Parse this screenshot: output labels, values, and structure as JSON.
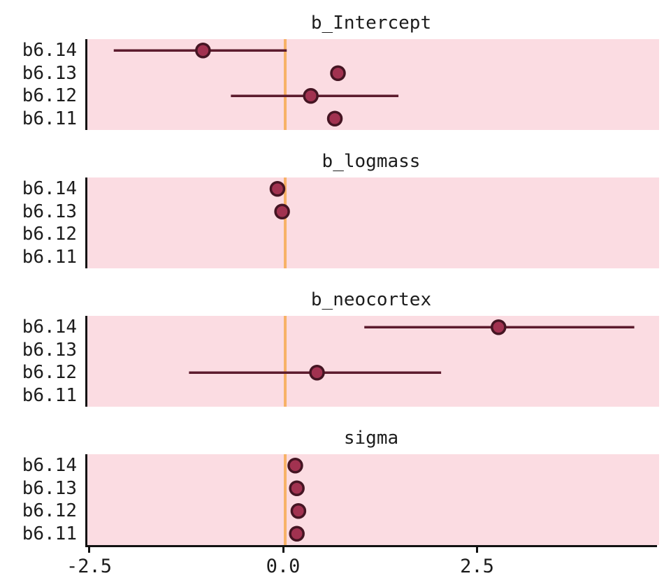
{
  "chart_data": {
    "type": "scatter",
    "subtype": "forest-interval-plot",
    "xlim": [
      -2.55,
      4.82
    ],
    "x_ticks": [
      -2.5,
      0.0,
      2.5
    ],
    "x_tick_labels": [
      "-2.5",
      "0.0",
      "2.5"
    ],
    "row_labels": [
      "b6.14",
      "b6.13",
      "b6.12",
      "b6.11"
    ],
    "zero_line": 0,
    "grid": false,
    "legend": "none",
    "colors": {
      "panel_bg": "#fbdce2",
      "zero_line": "#f7b267",
      "interval_line": "#5c1b2d",
      "point_fill": "#a13250",
      "point_stroke": "#451523",
      "axis": "#111111"
    },
    "panels": [
      {
        "title": "b_Intercept",
        "points": [
          {
            "row": "b6.14",
            "est": -1.06,
            "lo": -2.21,
            "hi": 0.02
          },
          {
            "row": "b6.13",
            "est": 0.68,
            "lo": 0.6,
            "hi": 0.76
          },
          {
            "row": "b6.12",
            "est": 0.33,
            "lo": -0.7,
            "hi": 1.46
          },
          {
            "row": "b6.11",
            "est": 0.64,
            "lo": 0.57,
            "hi": 0.71
          }
        ]
      },
      {
        "title": "b_logmass",
        "points": [
          {
            "row": "b6.14",
            "est": -0.1,
            "lo": -0.18,
            "hi": -0.02
          },
          {
            "row": "b6.13",
            "est": -0.04,
            "lo": -0.11,
            "hi": 0.04
          }
        ]
      },
      {
        "title": "b_neocortex",
        "points": [
          {
            "row": "b6.14",
            "est": 2.75,
            "lo": 1.02,
            "hi": 4.5
          },
          {
            "row": "b6.12",
            "est": 0.41,
            "lo": -1.24,
            "hi": 2.01
          }
        ]
      },
      {
        "title": "sigma",
        "points": [
          {
            "row": "b6.14",
            "est": 0.13,
            "lo": 0.1,
            "hi": 0.17
          },
          {
            "row": "b6.13",
            "est": 0.15,
            "lo": 0.12,
            "hi": 0.19
          },
          {
            "row": "b6.12",
            "est": 0.17,
            "lo": 0.13,
            "hi": 0.21
          },
          {
            "row": "b6.11",
            "est": 0.15,
            "lo": 0.12,
            "hi": 0.19
          }
        ]
      }
    ]
  }
}
